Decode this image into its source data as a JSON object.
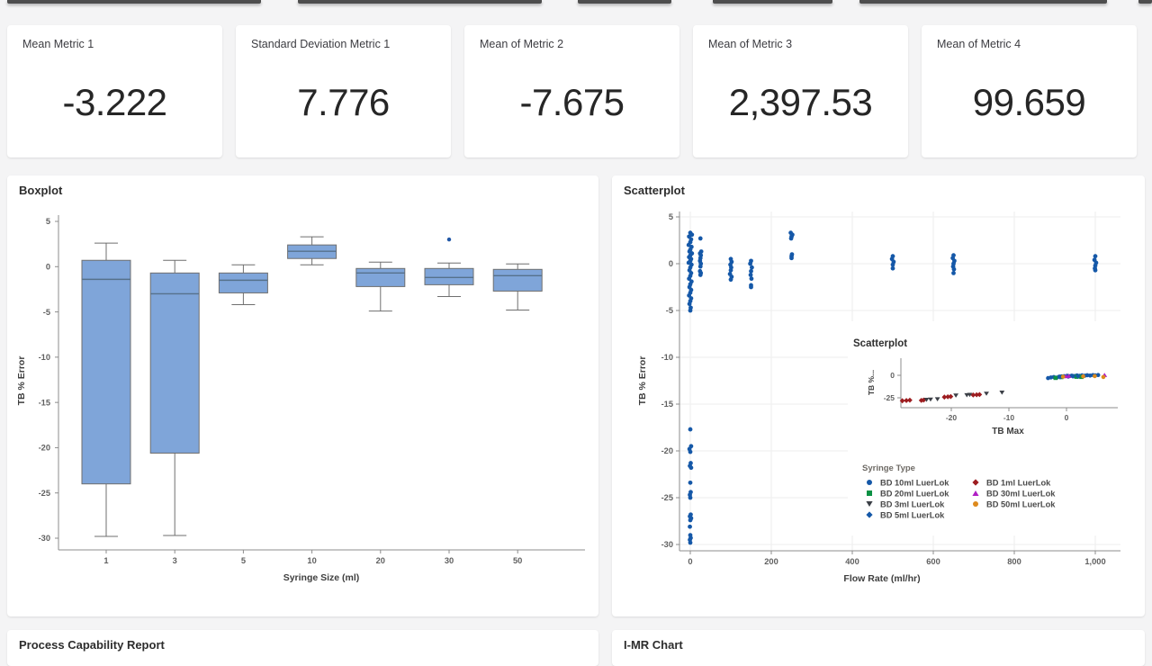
{
  "page": {
    "background": "#f4f4f5",
    "card_background": "#ffffff"
  },
  "metric_cards": [
    {
      "title": "Mean Metric 1",
      "value": "-3.222"
    },
    {
      "title": "Standard Deviation Metric 1",
      "value": "7.776"
    },
    {
      "title": "Mean of Metric 2",
      "value": "-7.675"
    },
    {
      "title": "Mean of Metric 3",
      "value": "2,397.53"
    },
    {
      "title": "Mean of Metric 4",
      "value": "99.659"
    }
  ],
  "panels": {
    "boxplot": {
      "title": "Boxplot"
    },
    "scatterplot": {
      "title": "Scatterplot"
    },
    "process_capability": {
      "title": "Process Capability Report"
    },
    "imr_chart": {
      "title": "I-MR Chart"
    }
  },
  "legend": {
    "title": "Syringe Type",
    "items": [
      {
        "label": "BD 10ml LuerLok",
        "marker": "circle",
        "color": "#1558a8"
      },
      {
        "label": "BD 20ml LuerLok",
        "marker": "square",
        "color": "#0c9144"
      },
      {
        "label": "BD 3ml LuerLok",
        "marker": "triangle-down",
        "color": "#3b3f46"
      },
      {
        "label": "BD 5ml LuerLok",
        "marker": "diamond",
        "color": "#1558a8"
      },
      {
        "label": "BD 1ml LuerLok",
        "marker": "diamond",
        "color": "#9d1d20"
      },
      {
        "label": "BD 30ml LuerLok",
        "marker": "triangle-up",
        "color": "#b01ec4"
      },
      {
        "label": "BD 50ml LuerLok",
        "marker": "circle",
        "color": "#dd8a1d"
      }
    ]
  },
  "chart_data": [
    {
      "type": "boxplot",
      "title": "Boxplot",
      "xlabel": "Syringe Size (ml)",
      "ylabel": "TB % Error",
      "categories": [
        "1",
        "3",
        "5",
        "10",
        "20",
        "30",
        "50"
      ],
      "yticks": [
        5,
        0,
        -5,
        -10,
        -15,
        -20,
        -25,
        -30
      ],
      "ylim": [
        -32,
        5
      ],
      "grid": false,
      "box_fill": "#7fa5d9",
      "box_stroke": "#6f6f6f",
      "median_color": "#56718b",
      "outlier_color": "#2157a6",
      "boxes": [
        {
          "whislo": -29.8,
          "q1": -24.0,
          "med": -1.4,
          "q3": 0.7,
          "whishi": 2.6,
          "outliers": []
        },
        {
          "whislo": -29.7,
          "q1": -20.6,
          "med": -3.0,
          "q3": -0.7,
          "whishi": 0.7,
          "outliers": []
        },
        {
          "whislo": -4.2,
          "q1": -2.9,
          "med": -1.5,
          "q3": -0.7,
          "whishi": 0.2,
          "outliers": []
        },
        {
          "whislo": 0.2,
          "q1": 0.9,
          "med": 1.7,
          "q3": 2.4,
          "whishi": 3.3,
          "outliers": []
        },
        {
          "whislo": -4.9,
          "q1": -2.2,
          "med": -0.7,
          "q3": -0.2,
          "whishi": 0.5,
          "outliers": []
        },
        {
          "whislo": -3.3,
          "q1": -2.0,
          "med": -1.2,
          "q3": -0.2,
          "whishi": 0.4,
          "outliers": [
            3.0
          ]
        },
        {
          "whislo": -4.8,
          "q1": -2.7,
          "med": -1.0,
          "q3": -0.3,
          "whishi": 0.3,
          "outliers": []
        }
      ]
    },
    {
      "type": "scatter",
      "title": "Scatterplot",
      "xlabel": "Flow Rate (ml/hr)",
      "ylabel": "TB % Error",
      "xticks": [
        0,
        200,
        400,
        600,
        800,
        1000
      ],
      "xtick_labels": [
        "0",
        "200",
        "400",
        "600",
        "800",
        "1,000"
      ],
      "yticks": [
        5,
        0,
        -5,
        -10,
        -15,
        -20,
        -25,
        -30
      ],
      "xlim": [
        -30,
        1060
      ],
      "ylim": [
        -32,
        5
      ],
      "grid": true,
      "point_color": "#1558a8",
      "points": [
        [
          0,
          3.3
        ],
        [
          4,
          3.1
        ],
        [
          -3,
          2.9
        ],
        [
          2,
          2.6
        ],
        [
          0,
          2.3
        ],
        [
          -4,
          2.0
        ],
        [
          3,
          1.8
        ],
        [
          0,
          1.5
        ],
        [
          -2,
          1.3
        ],
        [
          4,
          1.1
        ],
        [
          0,
          0.9
        ],
        [
          -3,
          0.7
        ],
        [
          2,
          0.5
        ],
        [
          0,
          0.3
        ],
        [
          -4,
          0.1
        ],
        [
          3,
          -0.1
        ],
        [
          0,
          -0.4
        ],
        [
          -2,
          -0.7
        ],
        [
          2,
          -1.0
        ],
        [
          0,
          -1.3
        ],
        [
          -3,
          -1.6
        ],
        [
          3,
          -1.9
        ],
        [
          0,
          -2.2
        ],
        [
          -2,
          -2.5
        ],
        [
          2,
          -2.8
        ],
        [
          0,
          -3.1
        ],
        [
          -3,
          -3.4
        ],
        [
          2,
          -3.7
        ],
        [
          0,
          -4.0
        ],
        [
          -2,
          -4.3
        ],
        [
          1,
          -4.7
        ],
        [
          0,
          -5.0
        ],
        [
          0,
          -17.7
        ],
        [
          2,
          -19.5
        ],
        [
          -2,
          -19.8
        ],
        [
          0,
          -20.1
        ],
        [
          1,
          -21.3
        ],
        [
          -1,
          -21.6
        ],
        [
          2,
          -21.8
        ],
        [
          0,
          -23.4
        ],
        [
          1,
          -24.4
        ],
        [
          -1,
          -24.7
        ],
        [
          0,
          -25.0
        ],
        [
          1,
          -26.8
        ],
        [
          -1,
          -27.0
        ],
        [
          2,
          -27.2
        ],
        [
          0,
          -27.4
        ],
        [
          -1,
          -28.1
        ],
        [
          0,
          -29.0
        ],
        [
          1,
          -29.3
        ],
        [
          -1,
          -29.5
        ],
        [
          0,
          -29.8
        ],
        [
          25,
          2.7
        ],
        [
          27,
          1.3
        ],
        [
          24,
          1.1
        ],
        [
          26,
          0.9
        ],
        [
          25,
          0.6
        ],
        [
          24,
          0.3
        ],
        [
          26,
          0.0
        ],
        [
          25,
          -0.3
        ],
        [
          24,
          -0.8
        ],
        [
          26,
          -1.0
        ],
        [
          25,
          -1.2
        ],
        [
          100,
          0.5
        ],
        [
          102,
          0.2
        ],
        [
          99,
          -0.1
        ],
        [
          101,
          -0.4
        ],
        [
          100,
          -0.7
        ],
        [
          98,
          -1.1
        ],
        [
          102,
          -1.4
        ],
        [
          100,
          -1.7
        ],
        [
          150,
          0.3
        ],
        [
          148,
          0.0
        ],
        [
          152,
          -0.4
        ],
        [
          150,
          -0.8
        ],
        [
          149,
          -1.2
        ],
        [
          151,
          -1.6
        ],
        [
          150,
          -2.3
        ],
        [
          150,
          -2.5
        ],
        [
          248,
          3.3
        ],
        [
          252,
          3.1
        ],
        [
          250,
          2.9
        ],
        [
          249,
          2.7
        ],
        [
          251,
          1.0
        ],
        [
          250,
          0.8
        ],
        [
          250,
          0.6
        ],
        [
          500,
          0.8
        ],
        [
          498,
          0.5
        ],
        [
          502,
          0.2
        ],
        [
          500,
          -0.1
        ],
        [
          500,
          -0.5
        ],
        [
          650,
          0.9
        ],
        [
          648,
          0.6
        ],
        [
          652,
          0.3
        ],
        [
          650,
          0.0
        ],
        [
          649,
          -0.3
        ],
        [
          651,
          -0.6
        ],
        [
          650,
          -1.0
        ],
        [
          1000,
          0.8
        ],
        [
          998,
          0.4
        ],
        [
          1002,
          0.1
        ],
        [
          1000,
          -0.2
        ],
        [
          999,
          -0.5
        ],
        [
          1000,
          -0.7
        ]
      ]
    },
    {
      "type": "scatter",
      "inset": true,
      "title": "Scatterplot",
      "xlabel": "TB Max",
      "ylabel": "TB %...",
      "xticks": [
        -20,
        -10,
        0
      ],
      "yticks": [
        0,
        -25
      ],
      "xlim": [
        -29,
        8.5
      ],
      "ylim": [
        -36,
        9
      ],
      "grid": false,
      "series": [
        {
          "name": "BD 1ml LuerLok",
          "marker": "diamond",
          "color": "#9d1d20",
          "points": [
            [
              -28.5,
              -28.3
            ],
            [
              -27.8,
              -28.0
            ],
            [
              -27.2,
              -27.6
            ],
            [
              -25.2,
              -27.9
            ],
            [
              -24.8,
              -27.5
            ],
            [
              -21.2,
              -24.2
            ],
            [
              -20.6,
              -23.9
            ],
            [
              -20.1,
              -23.6
            ],
            [
              -16.2,
              -21.9
            ],
            [
              -15.6,
              -21.6
            ],
            [
              -15.1,
              -21.4
            ]
          ]
        },
        {
          "name": "BD 3ml LuerLok",
          "marker": "triangle-down",
          "color": "#3b3f46",
          "points": [
            [
              -24.3,
              -27.3
            ],
            [
              -23.6,
              -27.0
            ],
            [
              -22.4,
              -26.7
            ],
            [
              -19.2,
              -22.6
            ],
            [
              -17.3,
              -22.2
            ],
            [
              -16.8,
              -21.8
            ],
            [
              -13.9,
              -20.5
            ],
            [
              -11.2,
              -19.3
            ]
          ]
        },
        {
          "name": "BD 10ml LuerLok",
          "marker": "circle",
          "color": "#1558a8",
          "points": [
            [
              -3.2,
              -3.1
            ],
            [
              -2.7,
              -2.4
            ],
            [
              -2.2,
              -1.9
            ],
            [
              -1.7,
              -2.6
            ],
            [
              -1.3,
              -1.6
            ],
            [
              -0.8,
              -1.2
            ],
            [
              -0.4,
              -0.9
            ],
            [
              0.1,
              -0.6
            ],
            [
              0.5,
              -1.0
            ],
            [
              0.9,
              -0.4
            ],
            [
              1.4,
              -0.8
            ],
            [
              1.8,
              -0.2
            ],
            [
              2.3,
              -0.6
            ],
            [
              2.7,
              -0.1
            ],
            [
              3.2,
              -0.4
            ],
            [
              3.6,
              0.1
            ],
            [
              4.1,
              -0.3
            ],
            [
              4.6,
              0.2
            ],
            [
              5.0,
              -0.1
            ],
            [
              5.5,
              0.3
            ]
          ]
        },
        {
          "name": "BD 20ml LuerLok",
          "marker": "square",
          "color": "#0c9144",
          "points": [
            [
              -1.9,
              -2.9
            ],
            [
              -0.9,
              -2.0
            ],
            [
              1.7,
              -1.6
            ],
            [
              2.1,
              -1.3
            ],
            [
              2.6,
              -1.8
            ]
          ]
        },
        {
          "name": "BD 5ml LuerLok",
          "marker": "diamond",
          "color": "#1558a8",
          "points": [
            [
              -1.1,
              -1.7
            ],
            [
              0.3,
              -1.2
            ],
            [
              1.1,
              -1.0
            ],
            [
              2.0,
              -0.9
            ]
          ]
        },
        {
          "name": "BD 30ml LuerLok",
          "marker": "triangle-up",
          "color": "#b01ec4",
          "points": [
            [
              -0.1,
              -0.9
            ],
            [
              0.4,
              -0.6
            ],
            [
              6.6,
              0.4
            ]
          ]
        },
        {
          "name": "BD 50ml LuerLok",
          "marker": "circle",
          "color": "#dd8a1d",
          "points": [
            [
              -0.6,
              -1.5
            ],
            [
              2.9,
              -1.2
            ],
            [
              4.9,
              -0.9
            ],
            [
              6.4,
              -1.9
            ]
          ]
        }
      ]
    }
  ]
}
